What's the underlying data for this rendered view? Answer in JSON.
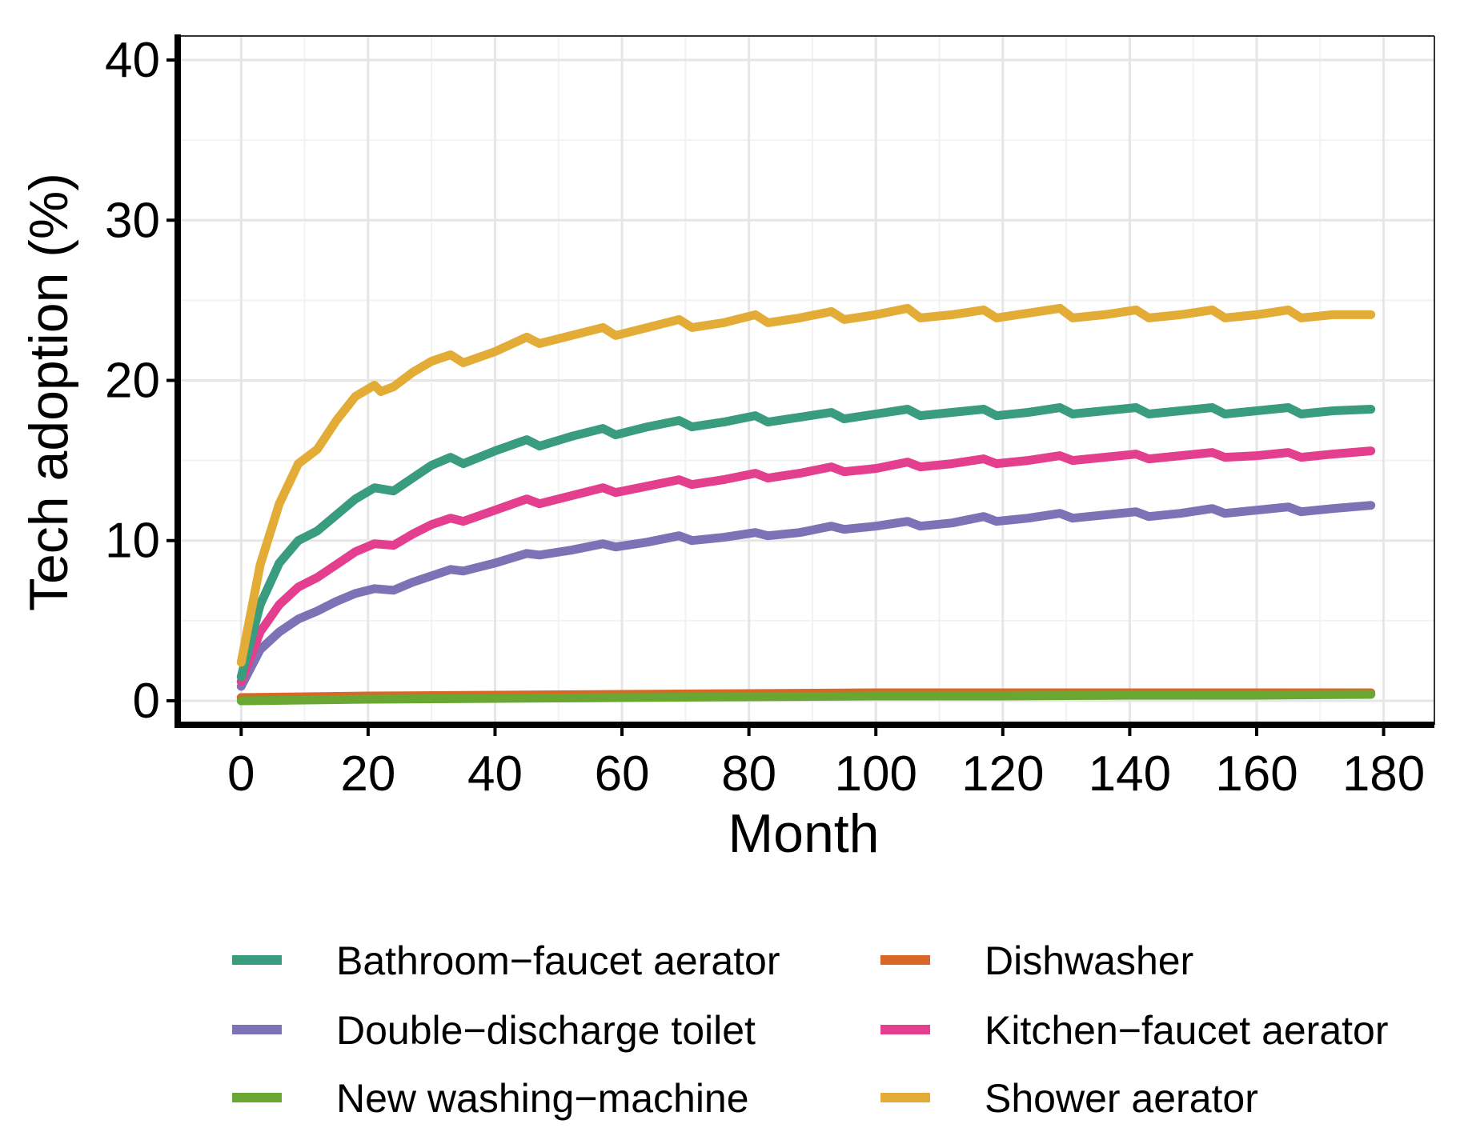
{
  "chart_data": {
    "type": "line",
    "title": "",
    "xlabel": "Month",
    "ylabel": "Tech adoption (%)",
    "xlim": [
      -10,
      188
    ],
    "ylim": [
      -1.5,
      41.5
    ],
    "xticks": [
      0,
      20,
      40,
      60,
      80,
      100,
      120,
      140,
      160,
      180
    ],
    "yticks": [
      0,
      10,
      20,
      30,
      40
    ],
    "grid": true,
    "legend_position": "bottom",
    "series": [
      {
        "name": "Bathroom−faucet aerator",
        "color": "#3a9c7e",
        "x": [
          0,
          3,
          6,
          9,
          12,
          15,
          18,
          21,
          24,
          27,
          30,
          33,
          35,
          40,
          45,
          47,
          52,
          57,
          59,
          64,
          69,
          71,
          76,
          81,
          83,
          88,
          93,
          95,
          100,
          105,
          107,
          112,
          117,
          119,
          124,
          129,
          131,
          136,
          141,
          143,
          148,
          153,
          155,
          160,
          165,
          167,
          172,
          178
        ],
        "y": [
          1.5,
          6.0,
          8.6,
          10.0,
          10.6,
          11.6,
          12.6,
          13.3,
          13.1,
          13.9,
          14.7,
          15.2,
          14.8,
          15.6,
          16.3,
          15.9,
          16.5,
          17.0,
          16.6,
          17.1,
          17.5,
          17.1,
          17.4,
          17.8,
          17.4,
          17.7,
          18.0,
          17.6,
          17.9,
          18.2,
          17.8,
          18.0,
          18.2,
          17.8,
          18.0,
          18.3,
          17.9,
          18.1,
          18.3,
          17.9,
          18.1,
          18.3,
          17.9,
          18.1,
          18.3,
          17.9,
          18.1,
          18.2
        ]
      },
      {
        "name": "Dishwasher",
        "color": "#d96728",
        "x": [
          0,
          20,
          40,
          60,
          80,
          100,
          120,
          140,
          160,
          178
        ],
        "y": [
          0.2,
          0.3,
          0.35,
          0.4,
          0.45,
          0.5,
          0.5,
          0.5,
          0.5,
          0.5
        ]
      },
      {
        "name": "Double−discharge toilet",
        "color": "#7b73b6",
        "x": [
          0,
          3,
          6,
          9,
          12,
          15,
          18,
          21,
          24,
          27,
          30,
          33,
          35,
          40,
          45,
          47,
          52,
          57,
          59,
          64,
          69,
          71,
          76,
          81,
          83,
          88,
          93,
          95,
          100,
          105,
          107,
          112,
          117,
          119,
          124,
          129,
          131,
          136,
          141,
          143,
          148,
          153,
          155,
          160,
          165,
          167,
          172,
          178
        ],
        "y": [
          0.9,
          3.2,
          4.3,
          5.1,
          5.6,
          6.2,
          6.7,
          7.0,
          6.9,
          7.4,
          7.8,
          8.2,
          8.1,
          8.6,
          9.2,
          9.1,
          9.4,
          9.8,
          9.6,
          9.9,
          10.3,
          10.0,
          10.2,
          10.5,
          10.3,
          10.5,
          10.9,
          10.7,
          10.9,
          11.2,
          10.9,
          11.1,
          11.5,
          11.2,
          11.4,
          11.7,
          11.4,
          11.6,
          11.8,
          11.5,
          11.7,
          12.0,
          11.7,
          11.9,
          12.1,
          11.8,
          12.0,
          12.2
        ]
      },
      {
        "name": "Kitchen−faucet aerator",
        "color": "#e43f8e",
        "x": [
          0,
          3,
          6,
          9,
          12,
          15,
          18,
          21,
          24,
          27,
          30,
          33,
          35,
          40,
          45,
          47,
          52,
          57,
          59,
          64,
          69,
          71,
          76,
          81,
          83,
          88,
          93,
          95,
          100,
          105,
          107,
          112,
          117,
          119,
          124,
          129,
          131,
          136,
          141,
          143,
          148,
          153,
          155,
          160,
          165,
          167,
          172,
          178
        ],
        "y": [
          1.2,
          4.3,
          6.0,
          7.1,
          7.7,
          8.5,
          9.3,
          9.8,
          9.7,
          10.4,
          11.0,
          11.4,
          11.2,
          11.9,
          12.6,
          12.3,
          12.8,
          13.3,
          13.0,
          13.4,
          13.8,
          13.5,
          13.8,
          14.2,
          13.9,
          14.2,
          14.6,
          14.3,
          14.5,
          14.9,
          14.6,
          14.8,
          15.1,
          14.8,
          15.0,
          15.3,
          15.0,
          15.2,
          15.4,
          15.1,
          15.3,
          15.5,
          15.2,
          15.3,
          15.5,
          15.2,
          15.4,
          15.6
        ]
      },
      {
        "name": "New washing−machine",
        "color": "#6aa632",
        "x": [
          0,
          20,
          40,
          60,
          80,
          100,
          120,
          140,
          160,
          178
        ],
        "y": [
          0.0,
          0.1,
          0.15,
          0.2,
          0.25,
          0.3,
          0.3,
          0.35,
          0.35,
          0.4
        ]
      },
      {
        "name": "Shower aerator",
        "color": "#e2ac36",
        "x": [
          0,
          3,
          6,
          9,
          12,
          15,
          18,
          21,
          22,
          24,
          27,
          30,
          33,
          35,
          40,
          45,
          47,
          52,
          57,
          59,
          64,
          69,
          71,
          76,
          81,
          83,
          88,
          93,
          95,
          100,
          105,
          107,
          112,
          117,
          119,
          124,
          129,
          131,
          136,
          141,
          143,
          148,
          153,
          155,
          160,
          165,
          167,
          172,
          178
        ],
        "y": [
          2.4,
          8.5,
          12.3,
          14.8,
          15.7,
          17.5,
          19.0,
          19.7,
          19.3,
          19.6,
          20.5,
          21.2,
          21.6,
          21.1,
          21.8,
          22.7,
          22.3,
          22.8,
          23.3,
          22.8,
          23.3,
          23.8,
          23.3,
          23.6,
          24.1,
          23.6,
          23.9,
          24.3,
          23.8,
          24.1,
          24.5,
          23.9,
          24.1,
          24.4,
          23.9,
          24.2,
          24.5,
          23.9,
          24.1,
          24.4,
          23.9,
          24.1,
          24.4,
          23.9,
          24.1,
          24.4,
          23.9,
          24.1,
          24.1
        ]
      }
    ]
  },
  "legend": {
    "items": [
      {
        "label": "Bathroom−faucet aerator",
        "color": "#3a9c7e"
      },
      {
        "label": "Dishwasher",
        "color": "#d96728"
      },
      {
        "label": "Double−discharge toilet",
        "color": "#7b73b6"
      },
      {
        "label": "Kitchen−faucet aerator",
        "color": "#e43f8e"
      },
      {
        "label": "New washing−machine",
        "color": "#6aa632"
      },
      {
        "label": "Shower aerator",
        "color": "#e2ac36"
      }
    ]
  },
  "colors": {
    "grid_major": "#e6e6e6",
    "grid_minor": "#f2f2f2",
    "axis": "#000000"
  }
}
